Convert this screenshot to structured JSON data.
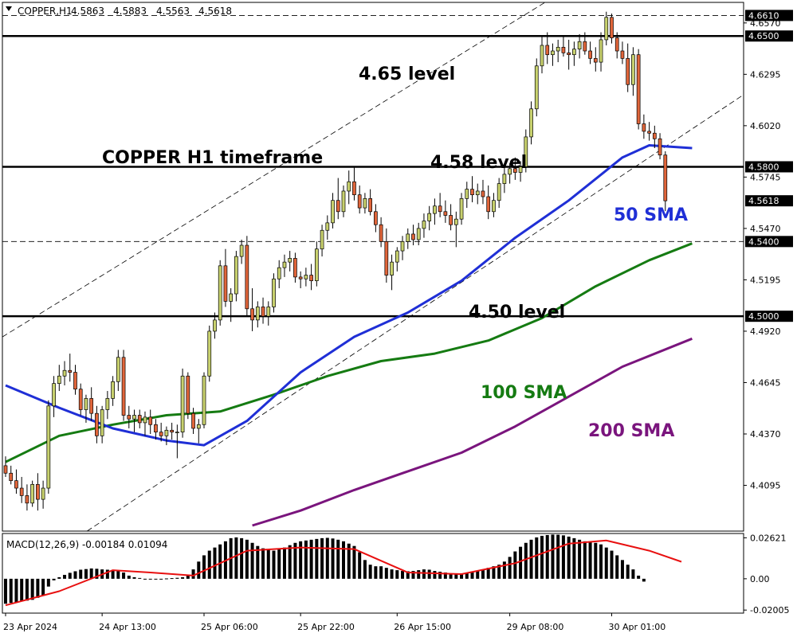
{
  "header": {
    "dropdown_icon": "triangle-down-icon",
    "symbol": "COPPER,H1",
    "open": "4.5863",
    "high": "4.5883",
    "low": "4.5563",
    "close": "4.5618"
  },
  "annotations": {
    "title": "COPPER H1 timeframe",
    "level_465": "4.65 level",
    "level_458": "4.58 level",
    "level_450": "4.50 level",
    "sma50": "50 SMA",
    "sma100": "100 SMA",
    "sma200": "200 SMA"
  },
  "colors": {
    "bull": "#c8d16e",
    "bear": "#e0653a",
    "sma50": "#1f2fd6",
    "sma100": "#157b12",
    "sma200": "#7a157d",
    "macd_signal": "#e81010",
    "histogram": "#000000"
  },
  "chart_data": [
    {
      "type": "candlestick",
      "title": "COPPER H1 timeframe",
      "y_range": [
        4.385,
        4.668
      ],
      "y_ticks": [
        "4.6570",
        "4.6295",
        "4.6020",
        "4.5745",
        "4.5470",
        "4.5195",
        "4.4920",
        "4.4645",
        "4.4370",
        "4.4095"
      ],
      "y_tick_values": [
        4.657,
        4.6295,
        4.602,
        4.5745,
        4.547,
        4.5195,
        4.492,
        4.4645,
        4.437,
        4.4095
      ],
      "x_tick_labels": [
        "23 Apr 2024",
        "24 Apr 13:00",
        "25 Apr 06:00",
        "25 Apr 22:00",
        "26 Apr 15:00",
        "29 Apr 08:00",
        "30 Apr 01:00"
      ],
      "x_tick_index": [
        0,
        18,
        37,
        55,
        73,
        94,
        113
      ],
      "levels": [
        {
          "value": 4.661,
          "label": "4.6610",
          "style": "dashed"
        },
        {
          "value": 4.65,
          "label": "4.6500",
          "style": "solid"
        },
        {
          "value": 4.58,
          "label": "4.5800",
          "style": "solid"
        },
        {
          "value": 4.54,
          "label": "4.5400",
          "style": "dashed"
        },
        {
          "value": 4.5,
          "label": "4.5000",
          "style": "solid"
        }
      ],
      "last_price": {
        "value": 4.5618,
        "label": "4.5618"
      },
      "channel": {
        "upper": [
          [
            0,
            4.49
          ],
          [
            113,
            4.69
          ]
        ],
        "lower": [
          [
            0,
            4.356
          ],
          [
            131,
            4.606
          ]
        ]
      },
      "candles": [
        [
          4.42,
          4.425,
          4.414,
          4.416
        ],
        [
          4.416,
          4.42,
          4.41,
          4.412
        ],
        [
          4.412,
          4.418,
          4.405,
          4.408
        ],
        [
          4.408,
          4.414,
          4.4,
          4.404
        ],
        [
          4.404,
          4.41,
          4.396,
          4.4
        ],
        [
          4.4,
          4.412,
          4.398,
          4.41
        ],
        [
          4.41,
          4.416,
          4.396,
          4.402
        ],
        [
          4.402,
          4.412,
          4.397,
          4.408
        ],
        [
          4.408,
          4.455,
          4.405,
          4.452
        ],
        [
          4.452,
          4.468,
          4.446,
          4.464
        ],
        [
          4.464,
          4.474,
          4.46,
          4.468
        ],
        [
          4.468,
          4.476,
          4.463,
          4.471
        ],
        [
          4.471,
          4.48,
          4.465,
          4.47
        ],
        [
          4.47,
          4.474,
          4.458,
          4.461
        ],
        [
          4.461,
          4.464,
          4.447,
          4.45
        ],
        [
          4.45,
          4.458,
          4.443,
          4.456
        ],
        [
          4.456,
          4.462,
          4.444,
          4.448
        ],
        [
          4.448,
          4.452,
          4.432,
          4.436
        ],
        [
          4.436,
          4.452,
          4.432,
          4.45
        ],
        [
          4.45,
          4.46,
          4.445,
          4.456
        ],
        [
          4.456,
          4.468,
          4.452,
          4.465
        ],
        [
          4.465,
          4.482,
          4.46,
          4.478
        ],
        [
          4.478,
          4.482,
          4.444,
          4.447
        ],
        [
          4.447,
          4.452,
          4.44,
          4.445
        ],
        [
          4.445,
          4.45,
          4.438,
          4.447
        ],
        [
          4.447,
          4.45,
          4.44,
          4.443
        ],
        [
          4.443,
          4.449,
          4.436,
          4.446
        ],
        [
          4.446,
          4.45,
          4.437,
          4.442
        ],
        [
          4.442,
          4.445,
          4.434,
          4.438
        ],
        [
          4.438,
          4.443,
          4.433,
          4.436
        ],
        [
          4.436,
          4.441,
          4.431,
          4.439
        ],
        [
          4.439,
          4.443,
          4.434,
          4.438
        ],
        [
          4.438,
          4.442,
          4.424,
          4.438
        ],
        [
          4.438,
          4.472,
          4.435,
          4.468
        ],
        [
          4.468,
          4.47,
          4.445,
          4.448
        ],
        [
          4.448,
          4.451,
          4.437,
          4.44
        ],
        [
          4.44,
          4.445,
          4.432,
          4.442
        ],
        [
          4.442,
          4.47,
          4.44,
          4.468
        ],
        [
          4.468,
          4.495,
          4.465,
          4.492
        ],
        [
          4.492,
          4.502,
          4.488,
          4.498
        ],
        [
          4.498,
          4.53,
          4.495,
          4.527
        ],
        [
          4.527,
          4.536,
          4.505,
          4.508
        ],
        [
          4.508,
          4.515,
          4.497,
          4.512
        ],
        [
          4.512,
          4.535,
          4.508,
          4.532
        ],
        [
          4.532,
          4.541,
          4.528,
          4.538
        ],
        [
          4.538,
          4.543,
          4.5,
          4.504
        ],
        [
          4.504,
          4.515,
          4.492,
          4.498
        ],
        [
          4.498,
          4.508,
          4.494,
          4.505
        ],
        [
          4.505,
          4.51,
          4.496,
          4.5
        ],
        [
          4.5,
          4.508,
          4.495,
          4.505
        ],
        [
          4.505,
          4.523,
          4.502,
          4.52
        ],
        [
          4.52,
          4.53,
          4.515,
          4.526
        ],
        [
          4.526,
          4.533,
          4.521,
          4.529
        ],
        [
          4.529,
          4.535,
          4.524,
          4.531
        ],
        [
          4.531,
          4.534,
          4.518,
          4.521
        ],
        [
          4.521,
          4.524,
          4.515,
          4.52
        ],
        [
          4.52,
          4.526,
          4.516,
          4.522
        ],
        [
          4.522,
          4.528,
          4.514,
          4.519
        ],
        [
          4.519,
          4.54,
          4.516,
          4.536
        ],
        [
          4.536,
          4.549,
          4.532,
          4.546
        ],
        [
          4.546,
          4.554,
          4.541,
          4.55
        ],
        [
          4.55,
          4.566,
          4.547,
          4.562
        ],
        [
          4.562,
          4.574,
          4.552,
          4.556
        ],
        [
          4.556,
          4.57,
          4.553,
          4.567
        ],
        [
          4.567,
          4.578,
          4.56,
          4.572
        ],
        [
          4.572,
          4.58,
          4.562,
          4.565
        ],
        [
          4.565,
          4.57,
          4.555,
          4.558
        ],
        [
          4.558,
          4.566,
          4.555,
          4.563
        ],
        [
          4.563,
          4.568,
          4.554,
          4.556
        ],
        [
          4.556,
          4.56,
          4.545,
          4.549
        ],
        [
          4.549,
          4.553,
          4.537,
          4.54
        ],
        [
          4.54,
          4.547,
          4.518,
          4.522
        ],
        [
          4.522,
          4.533,
          4.514,
          4.529
        ],
        [
          4.529,
          4.537,
          4.524,
          4.535
        ],
        [
          4.535,
          4.543,
          4.53,
          4.54
        ],
        [
          4.54,
          4.547,
          4.536,
          4.544
        ],
        [
          4.544,
          4.549,
          4.538,
          4.541
        ],
        [
          4.541,
          4.55,
          4.538,
          4.547
        ],
        [
          4.547,
          4.555,
          4.542,
          4.551
        ],
        [
          4.551,
          4.559,
          4.546,
          4.555
        ],
        [
          4.555,
          4.563,
          4.549,
          4.559
        ],
        [
          4.559,
          4.566,
          4.553,
          4.556
        ],
        [
          4.556,
          4.562,
          4.55,
          4.554
        ],
        [
          4.554,
          4.56,
          4.546,
          4.549
        ],
        [
          4.549,
          4.556,
          4.537,
          4.552
        ],
        [
          4.552,
          4.566,
          4.549,
          4.563
        ],
        [
          4.563,
          4.572,
          4.558,
          4.568
        ],
        [
          4.568,
          4.575,
          4.561,
          4.565
        ],
        [
          4.565,
          4.571,
          4.56,
          4.567
        ],
        [
          4.567,
          4.573,
          4.56,
          4.564
        ],
        [
          4.564,
          4.57,
          4.552,
          4.556
        ],
        [
          4.556,
          4.566,
          4.553,
          4.562
        ],
        [
          4.562,
          4.574,
          4.558,
          4.571
        ],
        [
          4.571,
          4.58,
          4.566,
          4.576
        ],
        [
          4.576,
          4.582,
          4.571,
          4.579
        ],
        [
          4.579,
          4.585,
          4.573,
          4.577
        ],
        [
          4.577,
          4.583,
          4.572,
          4.58
        ],
        [
          4.58,
          4.6,
          4.577,
          4.596
        ],
        [
          4.596,
          4.615,
          4.592,
          4.611
        ],
        [
          4.611,
          4.638,
          4.607,
          4.634
        ],
        [
          4.634,
          4.65,
          4.63,
          4.645
        ],
        [
          4.645,
          4.652,
          4.635,
          4.64
        ],
        [
          4.64,
          4.646,
          4.634,
          4.642
        ],
        [
          4.642,
          4.648,
          4.636,
          4.644
        ],
        [
          4.644,
          4.65,
          4.639,
          4.641
        ],
        [
          4.641,
          4.648,
          4.632,
          4.64
        ],
        [
          4.64,
          4.647,
          4.634,
          4.643
        ],
        [
          4.643,
          4.651,
          4.638,
          4.647
        ],
        [
          4.647,
          4.652,
          4.64,
          4.642
        ],
        [
          4.642,
          4.647,
          4.635,
          4.638
        ],
        [
          4.638,
          4.644,
          4.631,
          4.636
        ],
        [
          4.636,
          4.652,
          4.631,
          4.648
        ],
        [
          4.648,
          4.663,
          4.645,
          4.66
        ],
        [
          4.66,
          4.662,
          4.646,
          4.649
        ],
        [
          4.649,
          4.652,
          4.638,
          4.642
        ],
        [
          4.642,
          4.647,
          4.635,
          4.638
        ],
        [
          4.638,
          4.646,
          4.62,
          4.624
        ],
        [
          4.624,
          4.644,
          4.618,
          4.64
        ],
        [
          4.64,
          4.643,
          4.6,
          4.603
        ],
        [
          4.603,
          4.608,
          4.595,
          4.599
        ],
        [
          4.599,
          4.604,
          4.594,
          4.598
        ],
        [
          4.598,
          4.602,
          4.59,
          4.595
        ],
        [
          4.595,
          4.598,
          4.584,
          4.5863
        ],
        [
          4.5863,
          4.5883,
          4.5563,
          4.5618
        ]
      ],
      "sma50": [
        [
          0,
          4.463
        ],
        [
          10,
          4.451
        ],
        [
          20,
          4.44
        ],
        [
          30,
          4.4335
        ],
        [
          37,
          4.431
        ],
        [
          45,
          4.444
        ],
        [
          55,
          4.47
        ],
        [
          65,
          4.489
        ],
        [
          75,
          4.502
        ],
        [
          85,
          4.519
        ],
        [
          95,
          4.542
        ],
        [
          105,
          4.562
        ],
        [
          115,
          4.585
        ],
        [
          120,
          4.5915
        ],
        [
          128,
          4.59
        ]
      ],
      "sma100": [
        [
          0,
          4.422
        ],
        [
          10,
          4.436
        ],
        [
          20,
          4.442
        ],
        [
          30,
          4.447
        ],
        [
          40,
          4.449
        ],
        [
          50,
          4.458
        ],
        [
          60,
          4.468
        ],
        [
          70,
          4.476
        ],
        [
          80,
          4.48
        ],
        [
          90,
          4.487
        ],
        [
          100,
          4.499
        ],
        [
          110,
          4.516
        ],
        [
          120,
          4.53
        ],
        [
          128,
          4.539
        ]
      ],
      "sma200": [
        [
          46,
          4.388
        ],
        [
          55,
          4.396
        ],
        [
          65,
          4.407
        ],
        [
          75,
          4.417
        ],
        [
          85,
          4.427
        ],
        [
          95,
          4.441
        ],
        [
          105,
          4.457
        ],
        [
          115,
          4.473
        ],
        [
          128,
          4.488
        ]
      ]
    },
    {
      "type": "bar",
      "title": "MACD(12,26,9) -0.00184 0.01094",
      "y_range": [
        -0.022,
        0.029
      ],
      "y_ticks": [
        "0.02621",
        "0.00",
        "-0.02005"
      ],
      "y_tick_values": [
        0.02621,
        0.0,
        -0.02005
      ],
      "histogram": [
        -0.016,
        -0.0155,
        -0.015,
        -0.0145,
        -0.014,
        -0.0135,
        -0.0122,
        -0.0105,
        -0.005,
        -0.001,
        0.001,
        0.0025,
        0.0038,
        0.0048,
        0.0058,
        0.0062,
        0.0066,
        0.0064,
        0.006,
        0.0058,
        0.0056,
        0.0054,
        0.004,
        0.002,
        0.001,
        0.0005,
        0.0,
        -0.0005,
        -0.0002,
        0.0,
        0.0002,
        0.0004,
        0.0006,
        0.001,
        0.002,
        0.006,
        0.011,
        0.015,
        0.018,
        0.02,
        0.022,
        0.024,
        0.026,
        0.0265,
        0.026,
        0.025,
        0.023,
        0.021,
        0.0195,
        0.0185,
        0.018,
        0.019,
        0.02,
        0.0215,
        0.023,
        0.024,
        0.0245,
        0.025,
        0.0255,
        0.026,
        0.0262,
        0.0258,
        0.025,
        0.024,
        0.0225,
        0.021,
        0.017,
        0.012,
        0.009,
        0.008,
        0.008,
        0.007,
        0.006,
        0.0055,
        0.005,
        0.0048,
        0.005,
        0.0055,
        0.006,
        0.0058,
        0.005,
        0.0045,
        0.004,
        0.0035,
        0.003,
        0.0032,
        0.0038,
        0.0045,
        0.005,
        0.006,
        0.007,
        0.008,
        0.009,
        0.011,
        0.014,
        0.0175,
        0.0205,
        0.023,
        0.025,
        0.0265,
        0.0275,
        0.028,
        0.0283,
        0.0282,
        0.0278,
        0.027,
        0.026,
        0.025,
        0.024,
        0.0235,
        0.023,
        0.022,
        0.02,
        0.018,
        0.015,
        0.012,
        0.009,
        0.006,
        0.002,
        -0.0018
      ],
      "signal": [
        [
          0,
          -0.017
        ],
        [
          10,
          -0.008
        ],
        [
          20,
          0.0055
        ],
        [
          27,
          0.004
        ],
        [
          35,
          0.002
        ],
        [
          45,
          0.018
        ],
        [
          55,
          0.02
        ],
        [
          65,
          0.019
        ],
        [
          75,
          0.004
        ],
        [
          85,
          0.003
        ],
        [
          95,
          0.01
        ],
        [
          105,
          0.0225
        ],
        [
          112,
          0.0245
        ],
        [
          120,
          0.018
        ],
        [
          126,
          0.0109
        ]
      ]
    }
  ]
}
